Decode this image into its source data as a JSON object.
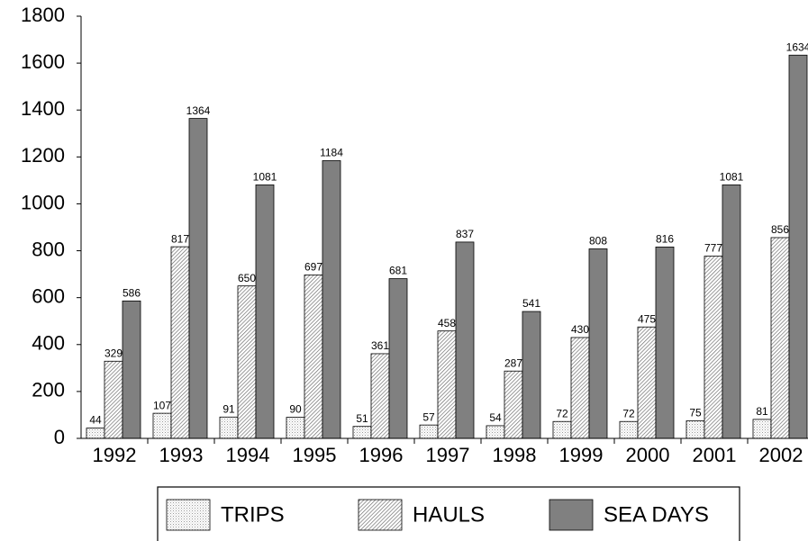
{
  "chart_data": {
    "type": "bar",
    "categories": [
      "1992",
      "1993",
      "1994",
      "1995",
      "1996",
      "1997",
      "1998",
      "1999",
      "2000",
      "2001",
      "2002"
    ],
    "series": [
      {
        "name": "TRIPS",
        "color": "#ffffff",
        "pattern": "dots",
        "values": [
          44,
          107,
          91,
          90,
          51,
          57,
          54,
          72,
          72,
          75,
          81
        ]
      },
      {
        "name": "HAULS",
        "color": "#ffffff",
        "pattern": "hatch",
        "values": [
          329,
          817,
          650,
          697,
          361,
          458,
          287,
          430,
          475,
          777,
          856
        ]
      },
      {
        "name": "SEA DAYS",
        "color": "#808080",
        "pattern": "solid",
        "values": [
          586,
          1364,
          1081,
          1184,
          681,
          837,
          541,
          808,
          816,
          1081,
          1634
        ]
      }
    ],
    "ylim": [
      0,
      1800
    ],
    "yticks": [
      0,
      200,
      400,
      600,
      800,
      1000,
      1200,
      1400,
      1600,
      1800
    ],
    "grid": false,
    "legend": "bottom"
  }
}
